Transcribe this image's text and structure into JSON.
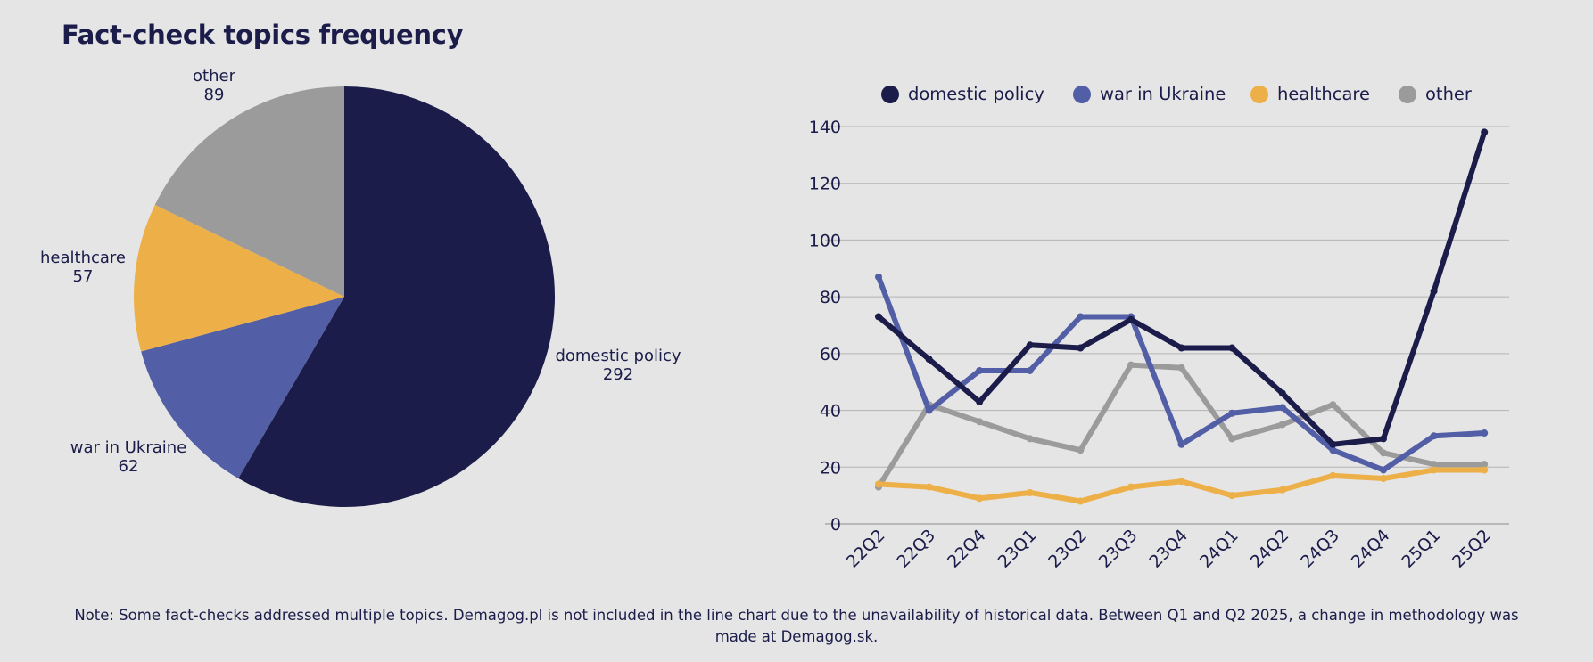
{
  "title": "Fact-check topics frequency",
  "note": "Note: Some fact-checks addressed multiple topics. Demagog.pl is not included in the line chart due to the unavailability of historical data. Between Q1 and Q2 2025, a change in methodology was made at Demagog.sk.",
  "colors": {
    "domestic_policy": "#1b1c4a",
    "war_in_ukraine": "#525ea5",
    "healthcare": "#edaf47",
    "other": "#9b9b9b",
    "background": "#e5e5e5",
    "gridline": "#b3b3b3"
  },
  "chart_data": [
    {
      "type": "pie",
      "categories": [
        "domestic policy",
        "war in Ukraine",
        "healthcare",
        "other"
      ],
      "values": [
        292,
        62,
        57,
        89
      ],
      "labels": [
        "domestic policy",
        "war in Ukraine",
        "healthcare",
        "other"
      ]
    },
    {
      "type": "line",
      "categories": [
        "22Q2",
        "22Q3",
        "22Q4",
        "23Q1",
        "23Q2",
        "23Q3",
        "23Q4",
        "24Q1",
        "24Q2",
        "24Q3",
        "24Q4",
        "25Q1",
        "25Q2"
      ],
      "ylim": [
        0,
        140
      ],
      "yticks": [
        0,
        20,
        40,
        60,
        80,
        100,
        120,
        140
      ],
      "grid": true,
      "legend_position": "top",
      "series": [
        {
          "name": "domestic policy",
          "values": [
            73,
            58,
            43,
            63,
            62,
            72,
            62,
            62,
            46,
            28,
            30,
            82,
            138
          ]
        },
        {
          "name": "war in Ukraine",
          "values": [
            87,
            40,
            54,
            54,
            73,
            73,
            28,
            39,
            41,
            26,
            19,
            31,
            32
          ]
        },
        {
          "name": "healthcare",
          "values": [
            14,
            13,
            9,
            11,
            8,
            13,
            15,
            10,
            12,
            17,
            16,
            19,
            19
          ]
        },
        {
          "name": "other",
          "values": [
            13,
            42,
            36,
            30,
            26,
            56,
            55,
            30,
            35,
            42,
            25,
            21,
            21
          ]
        }
      ]
    }
  ]
}
